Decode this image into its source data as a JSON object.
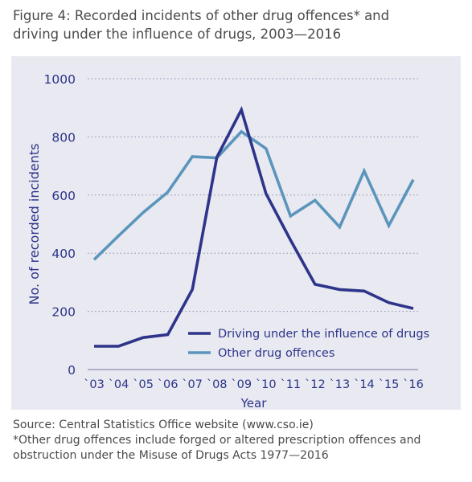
{
  "figure": {
    "title_line1": "Figure 4: Recorded incidents of other drug offences* and",
    "title_line2": "driving under the influence of drugs, 2003—2016"
  },
  "footer": {
    "source": "Source: Central Statistics Office website (www.cso.ie)",
    "note_line1": "*Other drug offences include forged or altered prescription offences and",
    "note_line2": "obstruction under the Misuse of Drugs Acts 1977—2016"
  },
  "colors": {
    "driving": "#2d3489",
    "other": "#5b95bc",
    "axis_text": "#2d3489",
    "panel_bg": "#e8e9f1"
  },
  "chart_data": {
    "type": "line",
    "xlabel": "Year",
    "ylabel": "No. of recorded incidents",
    "ylim": [
      0,
      1000
    ],
    "yticks": [
      0,
      200,
      400,
      600,
      800,
      1000
    ],
    "grid": "horizontal dotted",
    "legend_position": "lower-right",
    "categories": [
      "`03",
      "`04",
      "`05",
      "`06",
      "`07",
      "`08",
      "`09",
      "`10",
      "`11",
      "`12",
      "`13",
      "`14",
      "`15",
      "`16"
    ],
    "series": [
      {
        "name": "Driving under the influence of drugs",
        "color": "#2d3489",
        "values": [
          80,
          80,
          110,
          120,
          275,
          730,
          893,
          605,
          445,
          293,
          275,
          270,
          230,
          210
        ]
      },
      {
        "name": "Other drug offences",
        "color": "#5b95bc",
        "values": [
          378,
          460,
          540,
          610,
          732,
          728,
          818,
          760,
          528,
          582,
          490,
          683,
          495,
          653
        ]
      }
    ]
  }
}
